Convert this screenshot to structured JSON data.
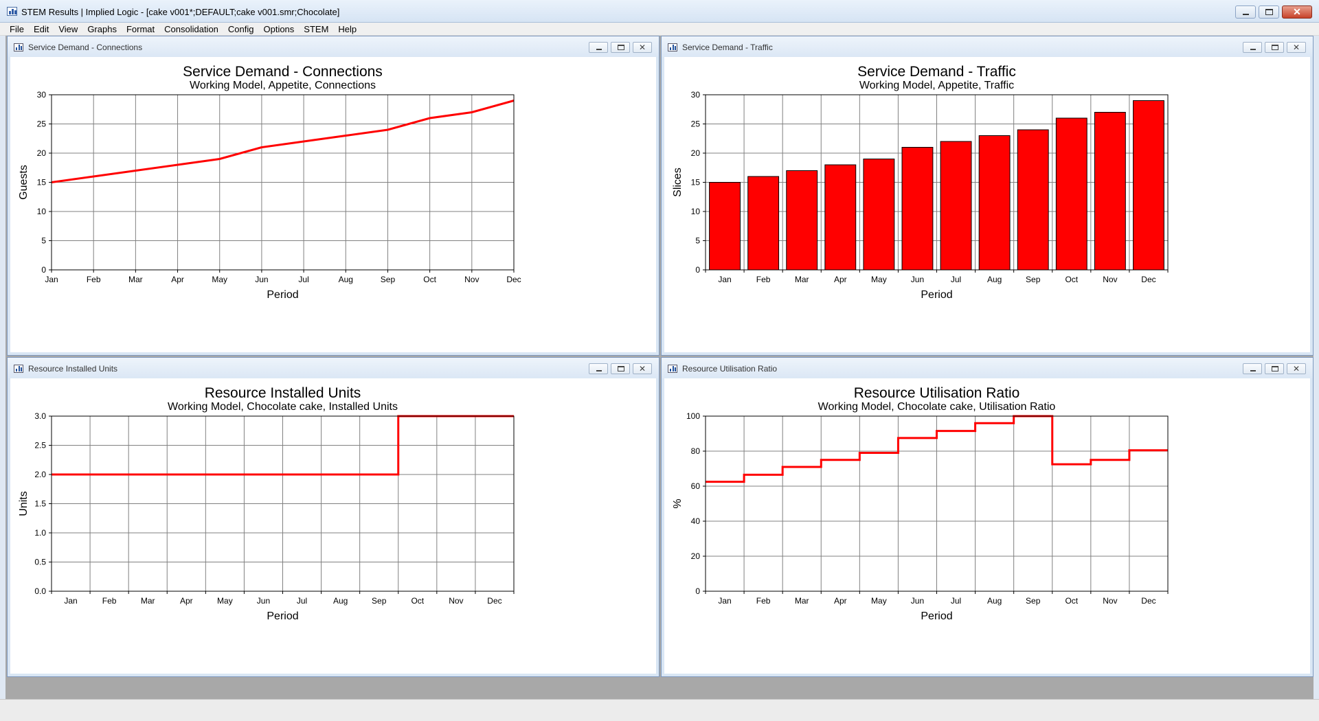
{
  "app": {
    "title": "STEM Results | Implied Logic - [cake v001*;DEFAULT;cake v001.smr;Chocolate]",
    "icon": "chart-window-icon"
  },
  "menu": [
    {
      "label": "File"
    },
    {
      "label": "Edit"
    },
    {
      "label": "View"
    },
    {
      "label": "Graphs"
    },
    {
      "label": "Format"
    },
    {
      "label": "Consolidation"
    },
    {
      "label": "Config"
    },
    {
      "label": "Options"
    },
    {
      "label": "STEM"
    },
    {
      "label": "Help"
    }
  ],
  "colors": {
    "series": "#ff0000",
    "grid": "#808080",
    "frame": "#000000"
  },
  "windows": [
    {
      "caption": "Service Demand - Connections",
      "icon": "chart-window-icon"
    },
    {
      "caption": "Service Demand - Traffic",
      "icon": "chart-window-icon"
    },
    {
      "caption": "Resource Installed Units",
      "icon": "chart-window-icon"
    },
    {
      "caption": "Resource Utilisation Ratio",
      "icon": "chart-window-icon"
    }
  ],
  "chart_data": [
    {
      "type": "line",
      "title": "Service Demand - Connections",
      "subtitle": "Working Model, Appetite, Connections",
      "xlabel": "Period",
      "ylabel": "Guests",
      "categories": [
        "Jan",
        "Feb",
        "Mar",
        "Apr",
        "May",
        "Jun",
        "Jul",
        "Aug",
        "Sep",
        "Oct",
        "Nov",
        "Dec"
      ],
      "values": [
        15,
        16,
        17,
        18,
        19,
        21,
        22,
        23,
        24,
        26,
        27,
        29
      ],
      "ylim": [
        0,
        30
      ],
      "yticks": [
        "0",
        "5",
        "10",
        "15",
        "20",
        "25",
        "30"
      ],
      "grid": true,
      "legend": "none",
      "color": "#ff0000",
      "x_mode": "points"
    },
    {
      "type": "bar",
      "title": "Service Demand - Traffic",
      "subtitle": "Working Model, Appetite, Traffic",
      "xlabel": "Period",
      "ylabel": "Slices",
      "categories": [
        "Jan",
        "Feb",
        "Mar",
        "Apr",
        "May",
        "Jun",
        "Jul",
        "Aug",
        "Sep",
        "Oct",
        "Nov",
        "Dec"
      ],
      "values": [
        15,
        16,
        17,
        18,
        19,
        21,
        22,
        23,
        24,
        26,
        27,
        29
      ],
      "ylim": [
        0,
        30
      ],
      "yticks": [
        "0",
        "5",
        "10",
        "15",
        "20",
        "25",
        "30"
      ],
      "grid": true,
      "legend": "none",
      "color": "#ff0000",
      "x_mode": "bands"
    },
    {
      "type": "line",
      "style": "step",
      "title": "Resource Installed Units",
      "subtitle": "Working Model, Chocolate cake, Installed Units",
      "xlabel": "Period",
      "ylabel": "Units",
      "categories": [
        "Jan",
        "Feb",
        "Mar",
        "Apr",
        "May",
        "Jun",
        "Jul",
        "Aug",
        "Sep",
        "Oct",
        "Nov",
        "Dec"
      ],
      "values": [
        2,
        2,
        2,
        2,
        2,
        2,
        2,
        2,
        2,
        3,
        3,
        3
      ],
      "ylim": [
        0,
        3
      ],
      "yticks": [
        "0.0",
        "0.5",
        "1.0",
        "1.5",
        "2.0",
        "2.5",
        "3.0"
      ],
      "grid": true,
      "legend": "none",
      "color": "#ff0000",
      "x_mode": "bands"
    },
    {
      "type": "line",
      "style": "step",
      "title": "Resource Utilisation Ratio",
      "subtitle": "Working Model, Chocolate cake, Utilisation Ratio",
      "xlabel": "Period",
      "ylabel": "%",
      "categories": [
        "Jan",
        "Feb",
        "Mar",
        "Apr",
        "May",
        "Jun",
        "Jul",
        "Aug",
        "Sep",
        "Oct",
        "Nov",
        "Dec"
      ],
      "values": [
        62.5,
        66.5,
        71,
        75,
        79,
        87.5,
        91.5,
        96,
        100,
        72.5,
        75,
        80.5
      ],
      "ylim": [
        0,
        100
      ],
      "yticks": [
        "0",
        "20",
        "40",
        "60",
        "80",
        "100"
      ],
      "grid": true,
      "legend": "none",
      "color": "#ff0000",
      "x_mode": "bands"
    }
  ]
}
